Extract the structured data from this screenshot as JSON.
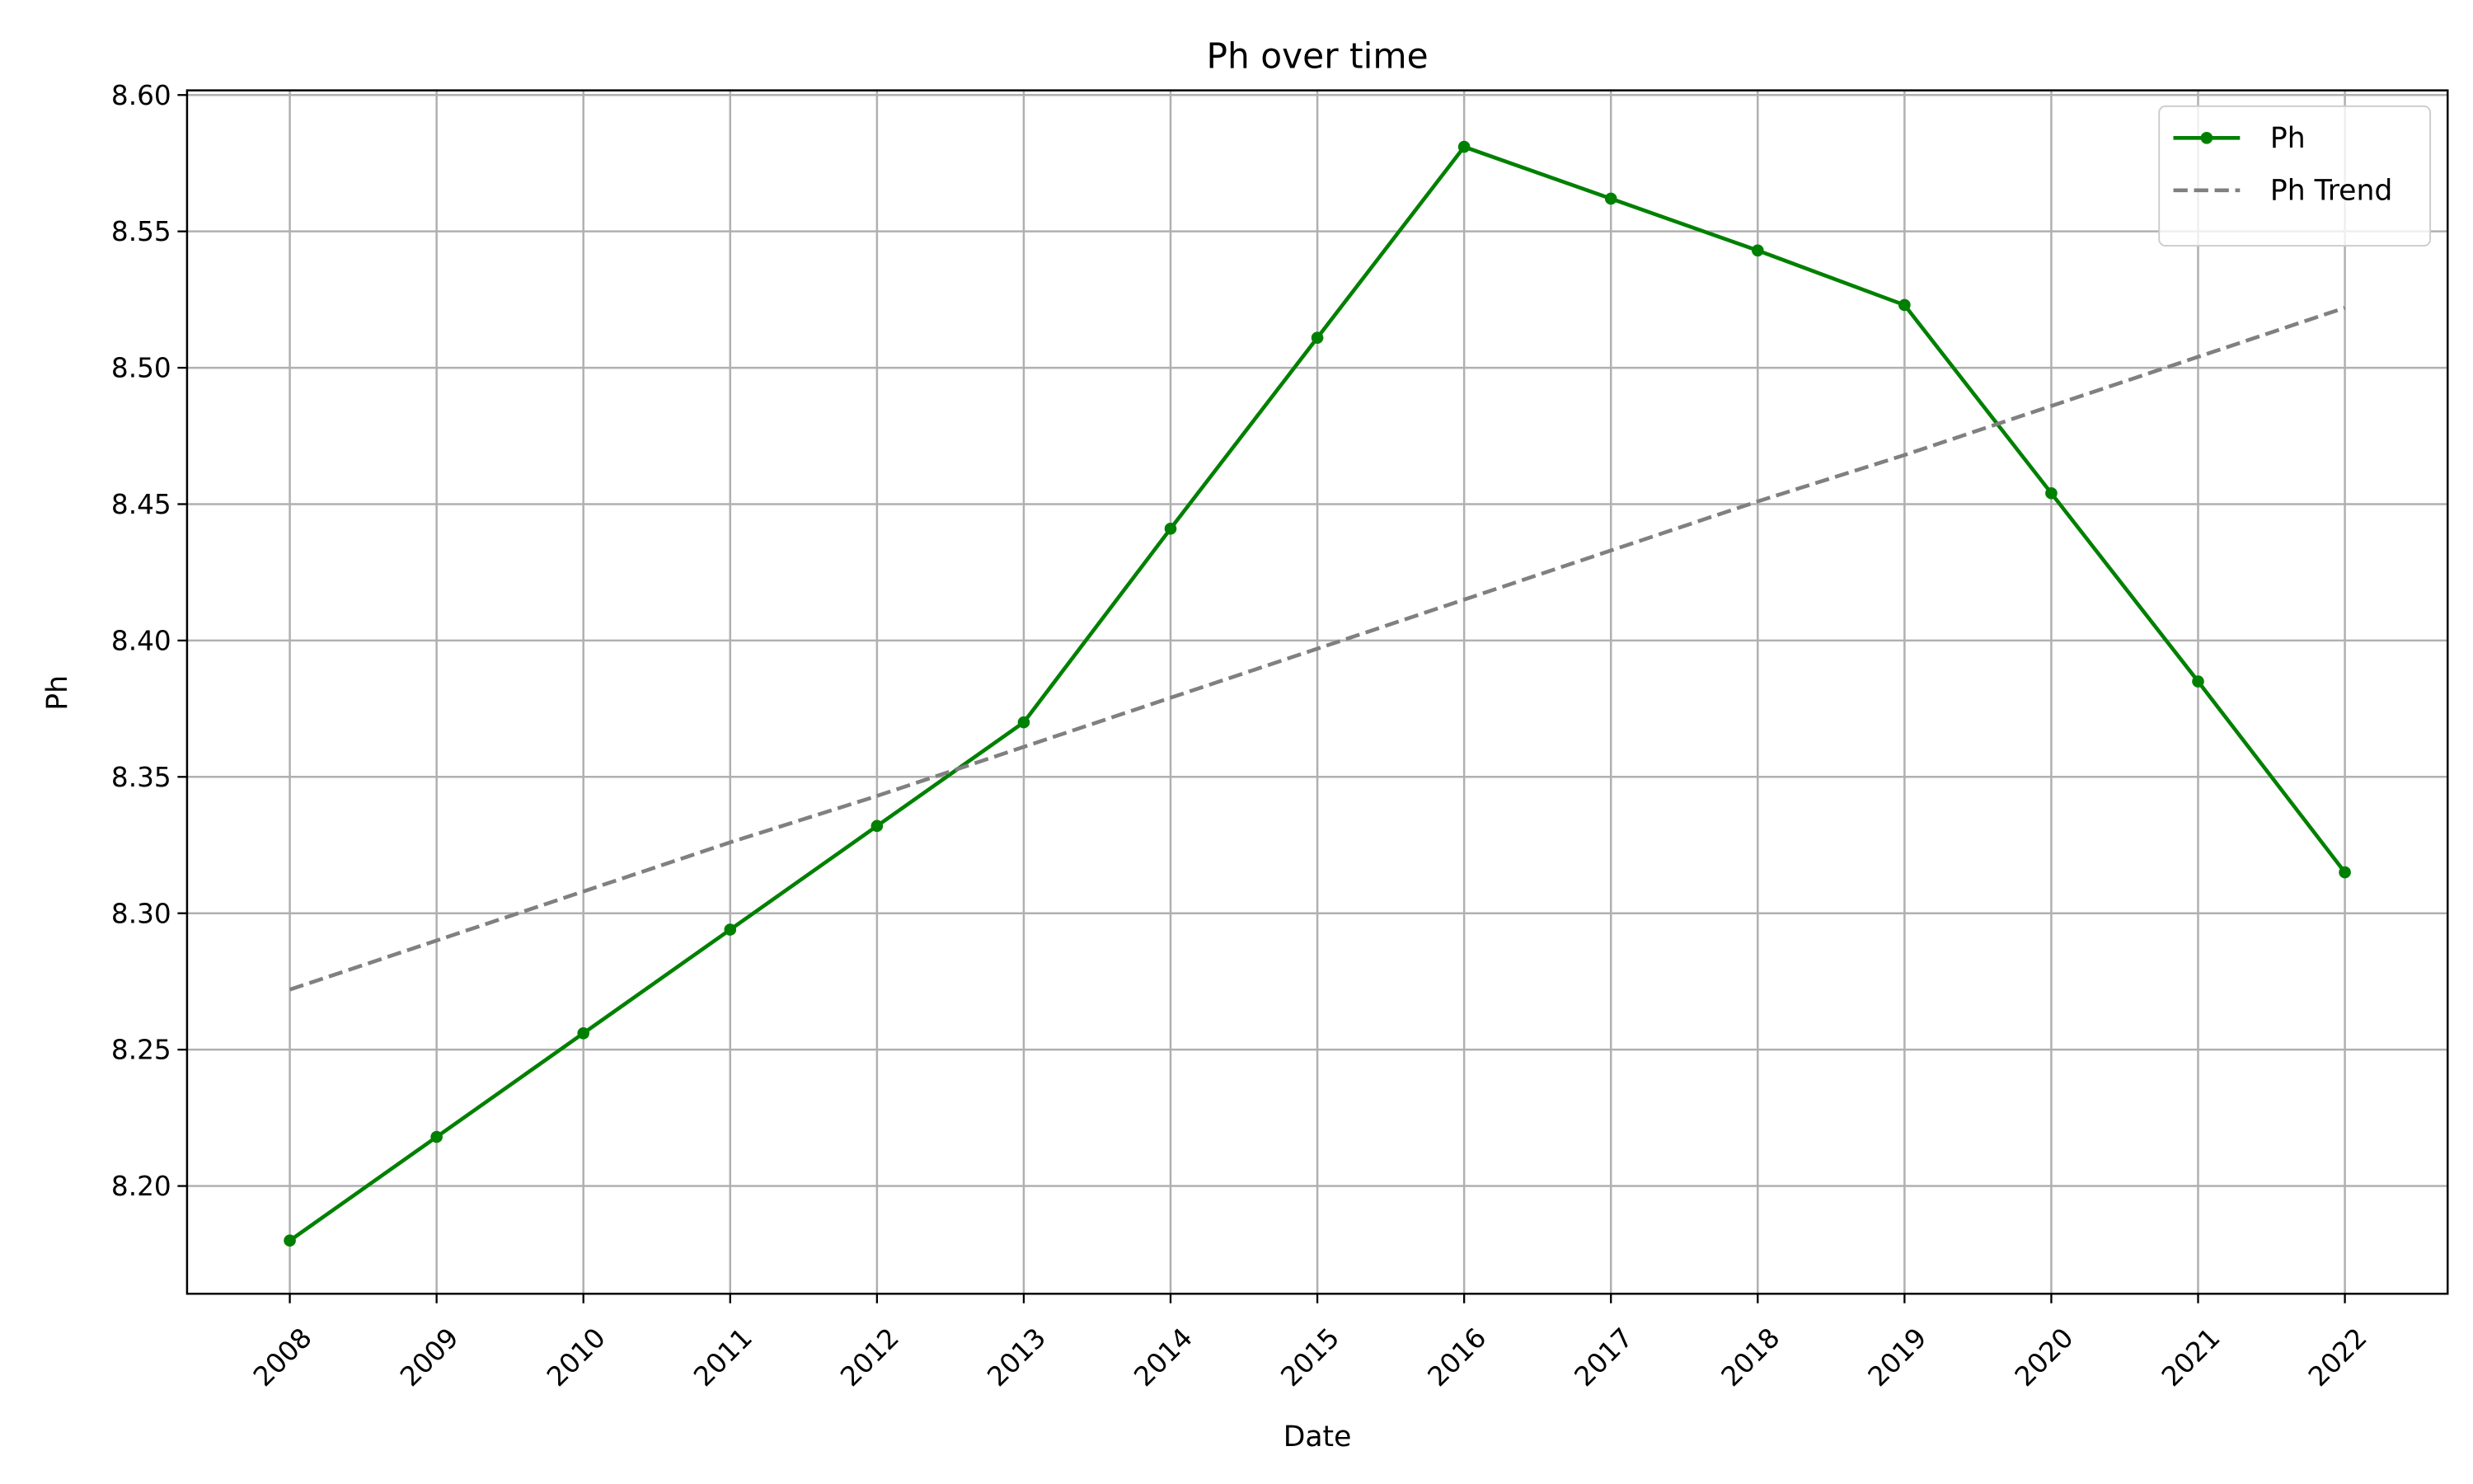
{
  "chart_data": {
    "type": "line",
    "title": "Ph over time",
    "x_label": "Date",
    "y_label": "Ph",
    "x": [
      2008,
      2009,
      2010,
      2011,
      2012,
      2013,
      2014,
      2015,
      2016,
      2017,
      2018,
      2019,
      2020,
      2021,
      2022
    ],
    "series": [
      {
        "name": "Ph",
        "color": "#008000",
        "dash": "solid",
        "marker": true,
        "values": [
          8.18,
          8.218,
          8.256,
          8.294,
          8.332,
          8.37,
          8.441,
          8.511,
          8.581,
          8.562,
          8.543,
          8.523,
          8.454,
          8.385,
          8.315
        ]
      },
      {
        "name": "Ph Trend",
        "color": "#808080",
        "dash": "dashed",
        "marker": false,
        "values": [
          8.272,
          8.29,
          8.308,
          8.326,
          8.343,
          8.361,
          8.379,
          8.397,
          8.415,
          8.433,
          8.451,
          8.468,
          8.486,
          8.504,
          8.522
        ]
      }
    ],
    "xlim": [
      2007.3,
      2022.7
    ],
    "xticks": [
      2008,
      2009,
      2010,
      2011,
      2012,
      2013,
      2014,
      2015,
      2016,
      2017,
      2018,
      2019,
      2020,
      2021,
      2022
    ],
    "ylim": [
      8.1605,
      8.6017
    ],
    "yticks": [
      {
        "value": 8.2,
        "label": "8.20"
      },
      {
        "value": 8.25,
        "label": "8.25"
      },
      {
        "value": 8.3,
        "label": "8.30"
      },
      {
        "value": 8.35,
        "label": "8.35"
      },
      {
        "value": 8.4,
        "label": "8.40"
      },
      {
        "value": 8.45,
        "label": "8.45"
      },
      {
        "value": 8.5,
        "label": "8.50"
      },
      {
        "value": 8.55,
        "label": "8.55"
      },
      {
        "value": 8.6,
        "label": "8.60"
      }
    ],
    "grid": true,
    "legend": "upper right"
  }
}
